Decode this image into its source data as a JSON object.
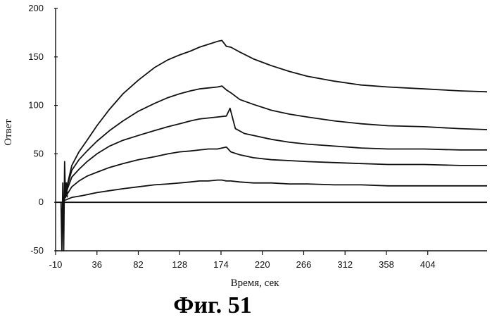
{
  "chart_data": {
    "type": "line",
    "xlabel": "Время, сек",
    "ylabel": "Ответ",
    "caption": "Фиг. 51",
    "xlim": [
      -10,
      470
    ],
    "ylim": [
      -50,
      200
    ],
    "x_ticks": [
      -10,
      36,
      82,
      128,
      174,
      220,
      266,
      312,
      358,
      404
    ],
    "y_ticks": [
      -50,
      0,
      50,
      100,
      150,
      200
    ],
    "series": [
      {
        "x": [
          0,
          4,
          8,
          16,
          25,
          36,
          50,
          65,
          82,
          100,
          115,
          128,
          140,
          150,
          160,
          170,
          175,
          180,
          185,
          195,
          210,
          230,
          250,
          270,
          300,
          330,
          360,
          400,
          440,
          470
        ],
        "values": [
          5,
          22,
          38,
          52,
          64,
          79,
          96,
          112,
          126,
          139,
          147,
          152,
          156,
          160,
          163,
          166,
          167,
          161,
          160,
          155,
          148,
          141,
          135,
          130,
          125,
          121,
          119,
          117,
          115,
          114
        ]
      },
      {
        "x": [
          0,
          4,
          8,
          16,
          25,
          36,
          50,
          65,
          82,
          100,
          115,
          128,
          140,
          150,
          160,
          170,
          175,
          180,
          185,
          195,
          210,
          230,
          250,
          270,
          300,
          330,
          360,
          400,
          440,
          470
        ],
        "values": [
          5,
          20,
          33,
          44,
          53,
          63,
          74,
          84,
          94,
          102,
          108,
          112,
          115,
          117,
          118,
          119,
          120,
          116,
          113,
          106,
          101,
          95,
          91,
          88,
          84,
          81,
          79,
          78,
          76,
          75
        ]
      },
      {
        "x": [
          0,
          4,
          8,
          16,
          25,
          36,
          50,
          65,
          82,
          100,
          115,
          128,
          140,
          150,
          160,
          170,
          180,
          184,
          190,
          200,
          215,
          230,
          250,
          270,
          300,
          330,
          360,
          400,
          440,
          470
        ],
        "values": [
          5,
          16,
          26,
          34,
          42,
          50,
          58,
          64,
          69,
          74,
          78,
          81,
          84,
          86,
          87,
          88,
          89,
          97,
          76,
          71,
          68,
          65,
          62,
          60,
          58,
          56,
          55,
          55,
          54,
          54
        ]
      },
      {
        "x": [
          0,
          4,
          8,
          16,
          25,
          36,
          50,
          65,
          82,
          100,
          115,
          128,
          140,
          150,
          160,
          170,
          175,
          180,
          185,
          195,
          210,
          230,
          250,
          270,
          300,
          330,
          360,
          400,
          440,
          470
        ],
        "values": [
          4,
          10,
          16,
          22,
          27,
          31,
          36,
          40,
          44,
          47,
          50,
          52,
          53,
          54,
          55,
          55,
          56,
          57,
          52,
          49,
          46,
          44,
          43,
          42,
          41,
          40,
          39,
          39,
          38,
          38
        ]
      },
      {
        "x": [
          0,
          8,
          20,
          36,
          50,
          65,
          82,
          100,
          115,
          128,
          140,
          150,
          160,
          170,
          175,
          180,
          185,
          195,
          210,
          230,
          250,
          270,
          300,
          330,
          360,
          400,
          440,
          470
        ],
        "values": [
          2,
          5,
          7,
          10,
          12,
          14,
          16,
          18,
          19,
          20,
          21,
          22,
          22,
          23,
          23,
          22,
          22,
          21,
          20,
          20,
          19,
          19,
          18,
          18,
          17,
          17,
          17,
          17
        ]
      },
      {
        "x": [
          -10,
          470
        ],
        "values": [
          0,
          0
        ]
      }
    ],
    "grid": false
  }
}
